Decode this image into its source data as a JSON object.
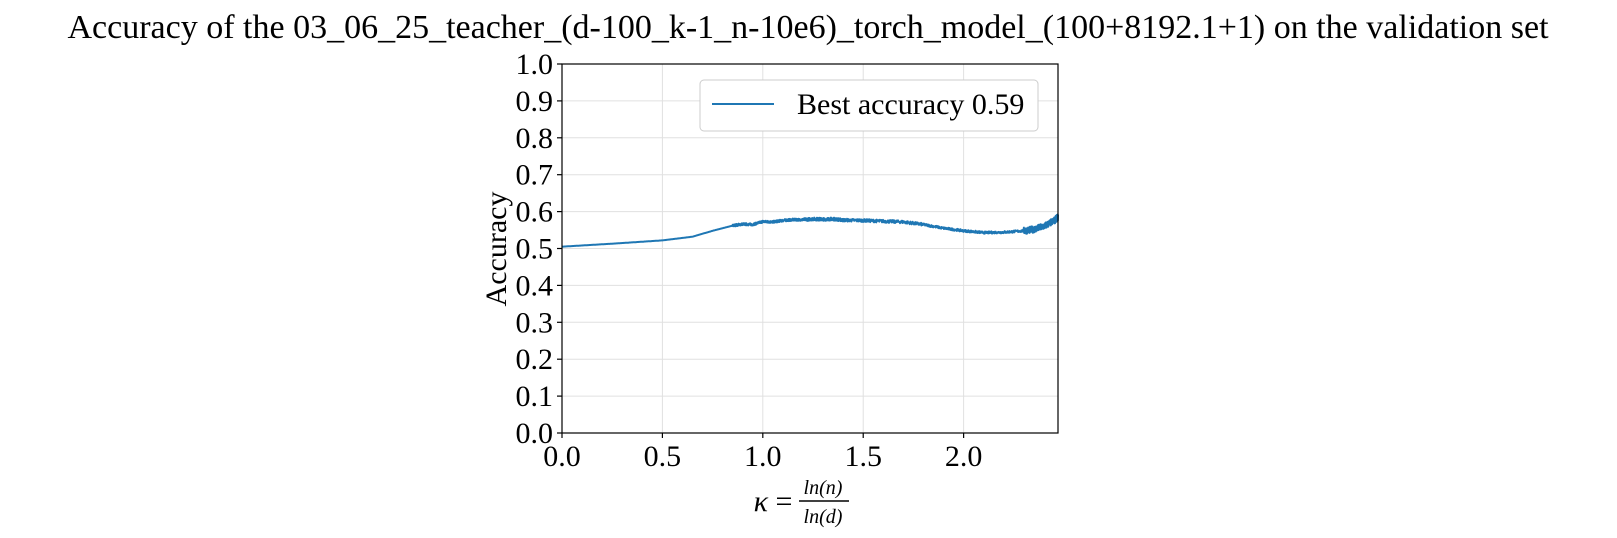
{
  "chart_data": {
    "type": "line",
    "title": "Accuracy of the 03_06_25_teacher_(d-100_k-1_n-10e6)_torch_model_(100+8192.1+1) on the validation set",
    "ylabel": "Accuracy",
    "xlabel": {
      "prefix": "κ",
      "equals": "=",
      "numerator": "ln(n)",
      "denominator": "ln(d)"
    },
    "xlim": [
      0.0,
      2.47
    ],
    "ylim": [
      0.0,
      1.0
    ],
    "xticks": [
      "0.0",
      "0.5",
      "1.0",
      "1.5",
      "2.0"
    ],
    "yticks": [
      "0.0",
      "0.1",
      "0.2",
      "0.3",
      "0.4",
      "0.5",
      "0.6",
      "0.7",
      "0.8",
      "0.9",
      "1.0"
    ],
    "grid": true,
    "legend": {
      "position": "top-right"
    },
    "colors": {
      "series": "#1f77b4",
      "grid": "#e0e0e0"
    },
    "series": [
      {
        "name": "Best accuracy 0.59",
        "x": [
          0.0,
          0.25,
          0.5,
          0.65,
          0.75,
          0.85,
          0.9,
          0.95,
          1.0,
          1.05,
          1.1,
          1.15,
          1.2,
          1.25,
          1.3,
          1.35,
          1.4,
          1.5,
          1.6,
          1.7,
          1.8,
          1.9,
          2.0,
          2.1,
          2.2,
          2.3,
          2.35,
          2.4,
          2.45,
          2.47
        ],
        "y": [
          0.505,
          0.513,
          0.522,
          0.532,
          0.548,
          0.562,
          0.566,
          0.565,
          0.573,
          0.572,
          0.576,
          0.578,
          0.578,
          0.58,
          0.579,
          0.58,
          0.577,
          0.576,
          0.574,
          0.572,
          0.565,
          0.555,
          0.548,
          0.543,
          0.544,
          0.548,
          0.552,
          0.56,
          0.575,
          0.585
        ]
      }
    ]
  }
}
